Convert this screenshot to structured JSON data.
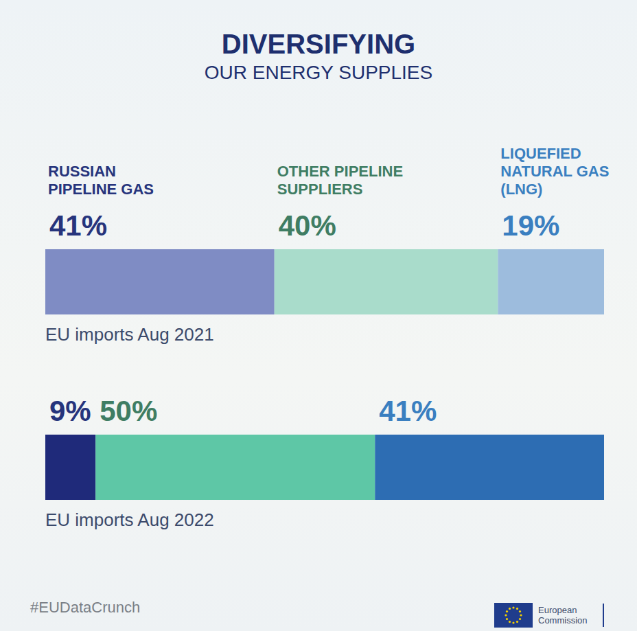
{
  "chart_data": {
    "type": "bar",
    "orientation": "horizontal",
    "stacked": true,
    "title": "DIVERSIFYING",
    "subtitle": "OUR ENERGY SUPPLIES",
    "categories": [
      "EU imports Aug 2021",
      "EU imports Aug 2022"
    ],
    "series": [
      {
        "name": "RUSSIAN PIPELINE GAS",
        "colors": [
          "#7f8cc4",
          "#1f2a7a"
        ],
        "values": [
          41,
          9
        ],
        "value_labels": [
          "41%",
          "9%"
        ]
      },
      {
        "name": "OTHER PIPELINE SUPPLIERS",
        "colors": [
          "#a9dccb",
          "#5ec7a6"
        ],
        "values": [
          40,
          50
        ],
        "value_labels": [
          "40%",
          "50%"
        ]
      },
      {
        "name": "LIQUEFIED NATURAL GAS (LNG)",
        "colors": [
          "#9dbcdd",
          "#2d6db3"
        ],
        "values": [
          19,
          41
        ],
        "value_labels": [
          "19%",
          "41%"
        ]
      }
    ],
    "xlim": [
      0,
      100
    ],
    "tick_labels": false,
    "data_labels": true,
    "grid": false,
    "annotations": [
      "#EUDataCrunch",
      "European Commission"
    ]
  }
}
